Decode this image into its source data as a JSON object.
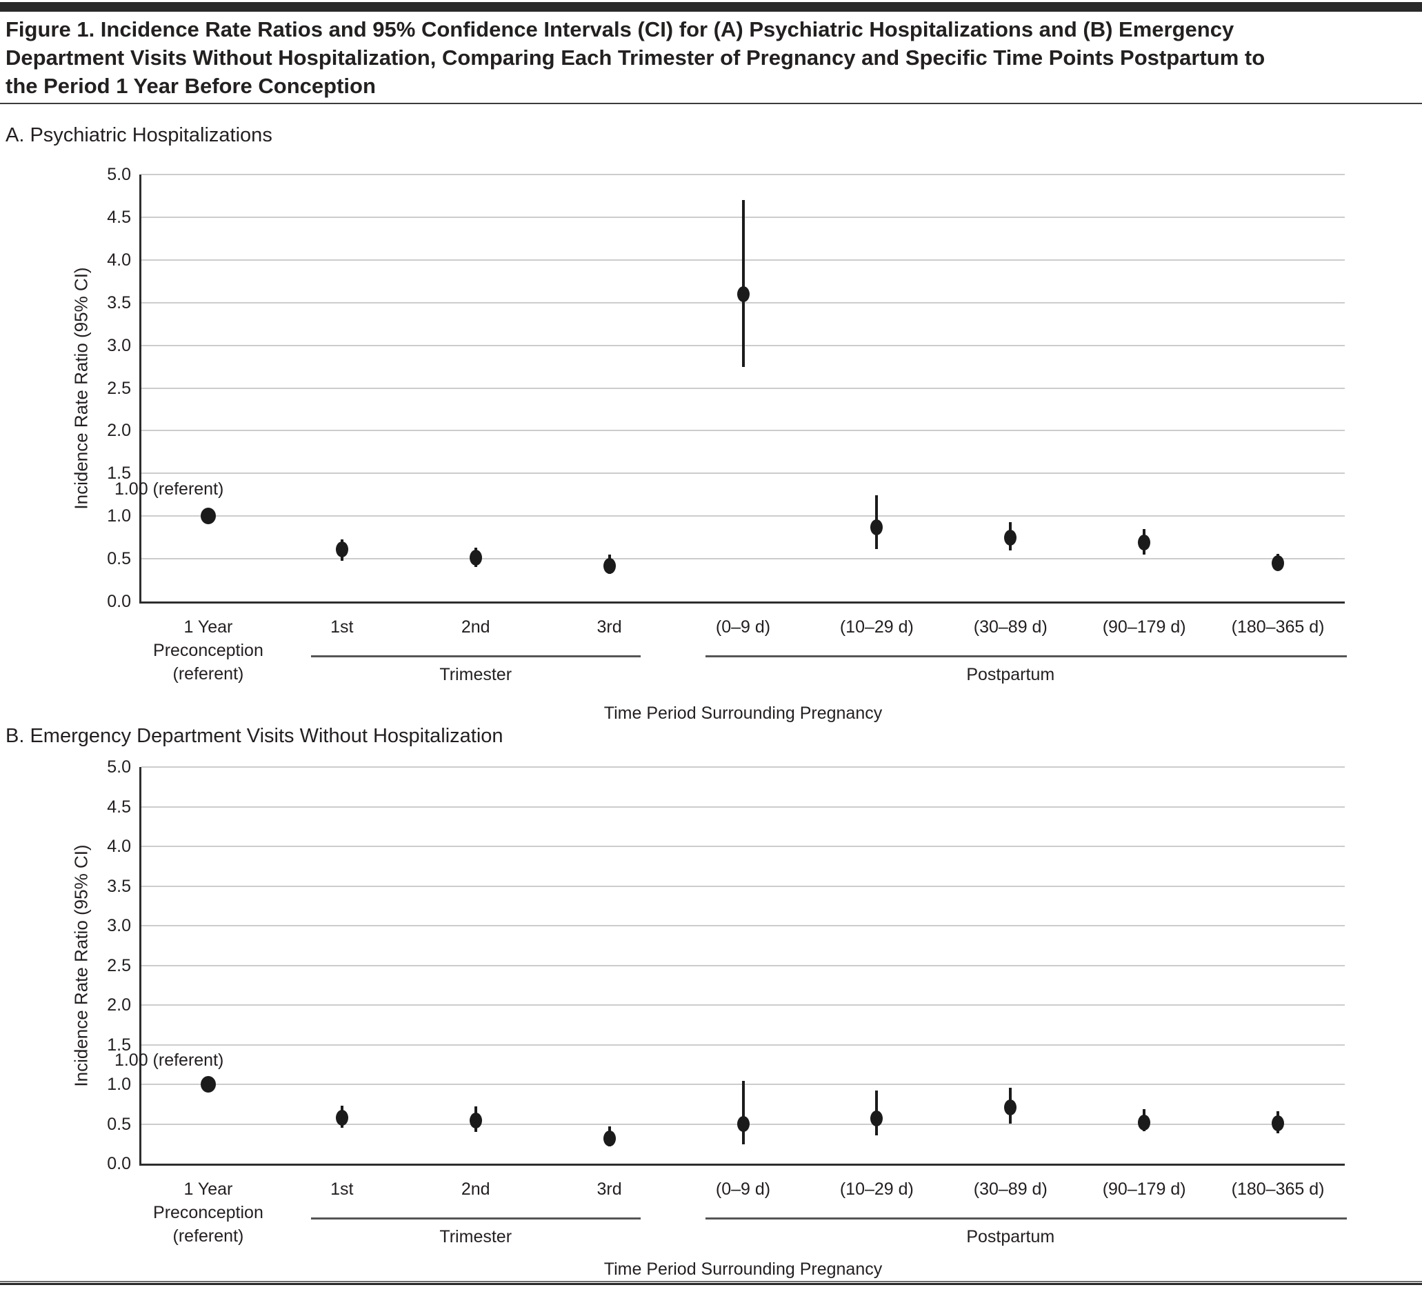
{
  "figure": {
    "title_lines": [
      "Figure 1. Incidence Rate Ratios and 95% Confidence Intervals (CI) for (A) Psychiatric Hospitalizations and (B) Emergency",
      "Department Visits Without Hospitalization, Comparing Each Trimester of Pregnancy and Specific Time Points Postpartum to",
      "the Period 1 Year Before Conception"
    ]
  },
  "colors": {
    "text": "#231f20",
    "gridline": "#cccccc",
    "axis": "#2d2d2d",
    "marker": "#1b1b1b",
    "group_rule": "#555555",
    "top_bar": "#2b2a2a"
  },
  "chart_data": [
    {
      "type": "scatter",
      "panel_label": "A. Psychiatric Hospitalizations",
      "ylabel": "Incidence Rate Ratio (95% CI)",
      "xlabel": "Time Period Surrounding Pregnancy",
      "ylim": [
        0.0,
        5.0
      ],
      "yticks": [
        0.0,
        0.5,
        1.0,
        1.5,
        2.0,
        2.5,
        3.0,
        3.5,
        4.0,
        4.5,
        5.0
      ],
      "grid": true,
      "legend": "none",
      "annotation": "1.00 (referent)",
      "categories": [
        [
          "1 Year",
          "Preconception",
          "(referent)"
        ],
        [
          "1st"
        ],
        [
          "2nd"
        ],
        [
          "3rd"
        ],
        [
          "(0–9 d)"
        ],
        [
          "(10–29 d)"
        ],
        [
          "(30–89 d)"
        ],
        [
          "(90–179 d)"
        ],
        [
          "(180–365 d)"
        ]
      ],
      "groups": [
        {
          "label": "Trimester",
          "from": 1,
          "to": 3
        },
        {
          "label": "Postpartum",
          "from": 4,
          "to": 8
        }
      ],
      "points": [
        {
          "irr": 1.0,
          "lo": null,
          "hi": null
        },
        {
          "irr": 0.61,
          "lo": 0.48,
          "hi": 0.73
        },
        {
          "irr": 0.51,
          "lo": 0.4,
          "hi": 0.63
        },
        {
          "irr": 0.42,
          "lo": 0.32,
          "hi": 0.55
        },
        {
          "irr": 3.6,
          "lo": 2.75,
          "hi": 4.7
        },
        {
          "irr": 0.87,
          "lo": 0.61,
          "hi": 1.24
        },
        {
          "irr": 0.75,
          "lo": 0.6,
          "hi": 0.93
        },
        {
          "irr": 0.69,
          "lo": 0.55,
          "hi": 0.85
        },
        {
          "irr": 0.45,
          "lo": 0.36,
          "hi": 0.56
        }
      ]
    },
    {
      "type": "scatter",
      "panel_label": "B. Emergency Department Visits Without Hospitalization",
      "ylabel": "Incidence Rate Ratio (95% CI)",
      "xlabel": "Time Period Surrounding Pregnancy",
      "ylim": [
        0.0,
        5.0
      ],
      "yticks": [
        0.0,
        0.5,
        1.0,
        1.5,
        2.0,
        2.5,
        3.0,
        3.5,
        4.0,
        4.5,
        5.0
      ],
      "grid": true,
      "legend": "none",
      "annotation": "1.00 (referent)",
      "categories": [
        [
          "1 Year",
          "Preconception",
          "(referent)"
        ],
        [
          "1st"
        ],
        [
          "2nd"
        ],
        [
          "3rd"
        ],
        [
          "(0–9 d)"
        ],
        [
          "(10–29 d)"
        ],
        [
          "(30–89 d)"
        ],
        [
          "(90–179 d)"
        ],
        [
          "(180–365 d)"
        ]
      ],
      "groups": [
        {
          "label": "Trimester",
          "from": 1,
          "to": 3
        },
        {
          "label": "Postpartum",
          "from": 4,
          "to": 8
        }
      ],
      "points": [
        {
          "irr": 1.0,
          "lo": null,
          "hi": null
        },
        {
          "irr": 0.58,
          "lo": 0.45,
          "hi": 0.73
        },
        {
          "irr": 0.54,
          "lo": 0.4,
          "hi": 0.72
        },
        {
          "irr": 0.32,
          "lo": 0.22,
          "hi": 0.47
        },
        {
          "irr": 0.5,
          "lo": 0.24,
          "hi": 1.04
        },
        {
          "irr": 0.57,
          "lo": 0.36,
          "hi": 0.92
        },
        {
          "irr": 0.71,
          "lo": 0.5,
          "hi": 0.96
        },
        {
          "irr": 0.52,
          "lo": 0.41,
          "hi": 0.69
        },
        {
          "irr": 0.51,
          "lo": 0.38,
          "hi": 0.66
        }
      ]
    }
  ]
}
